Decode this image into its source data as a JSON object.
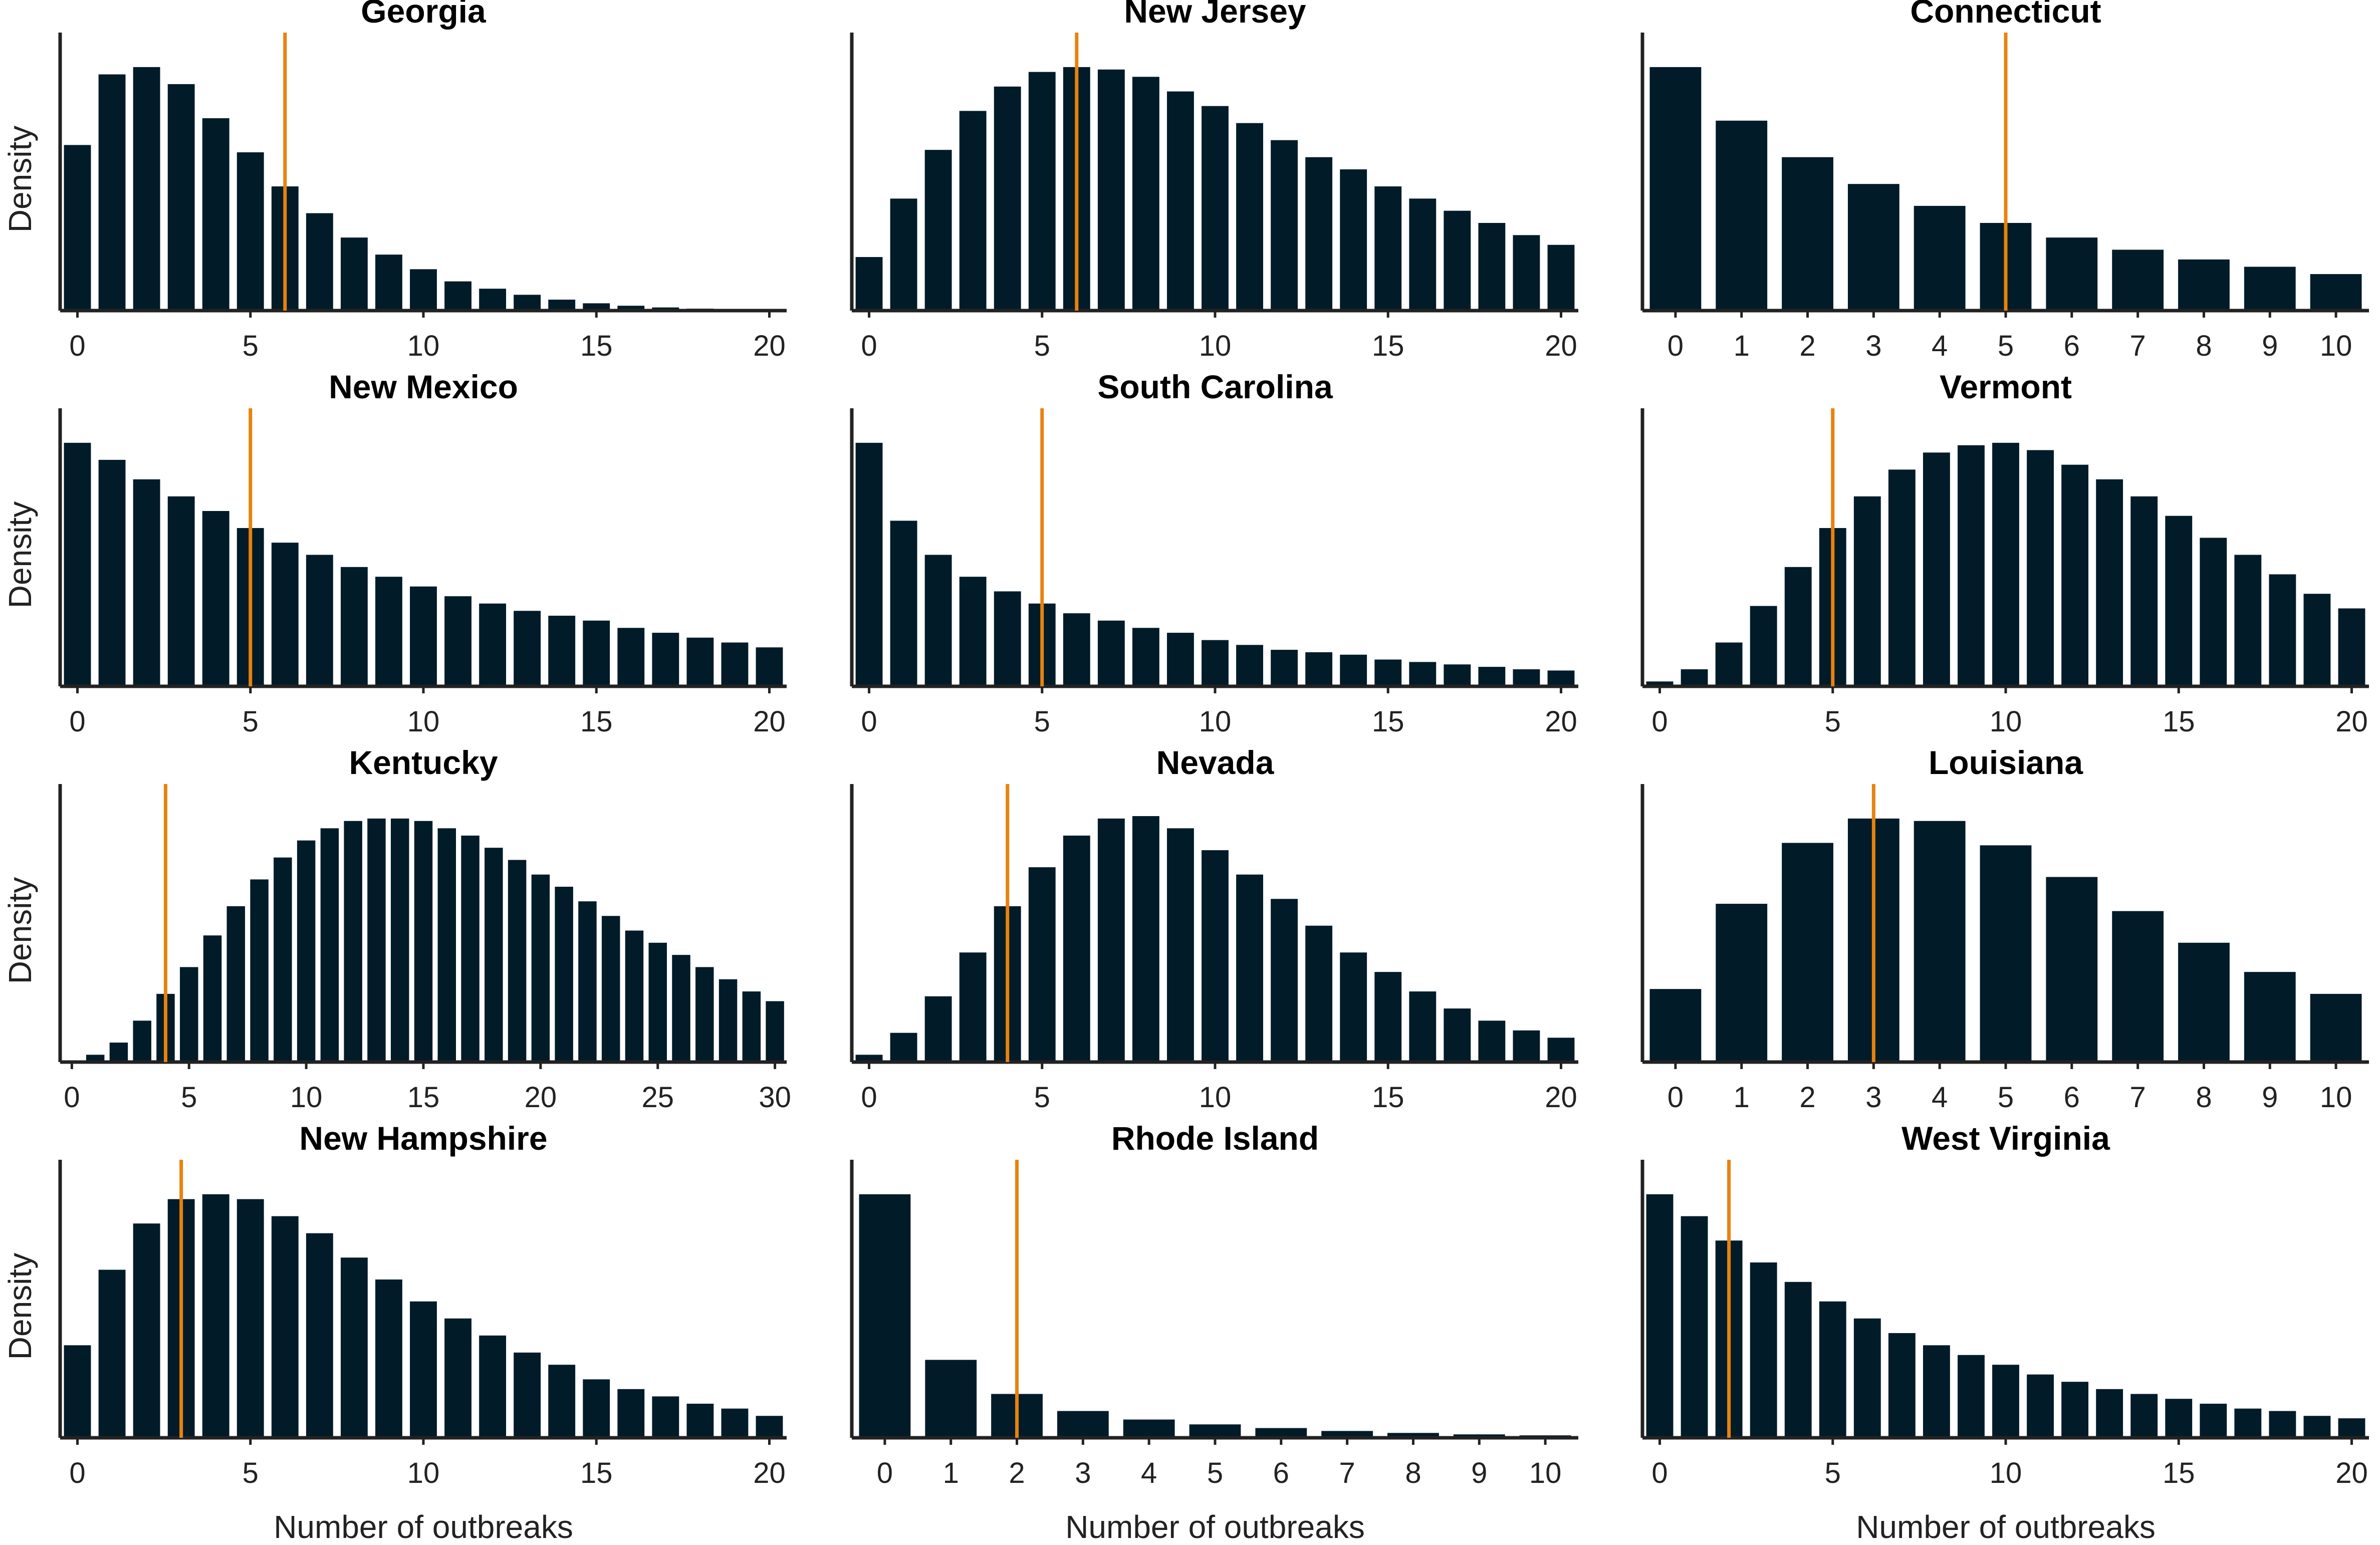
{
  "style": {
    "bar_color": "#021b28",
    "marker_color": "#e8820e",
    "axis_color": "#222222",
    "background": "#ffffff"
  },
  "layout": {
    "rows": 4,
    "cols": 3
  },
  "labels": {
    "ylabel": "Density",
    "xlabel": "Number of outbreaks"
  },
  "chart_data": [
    {
      "type": "bar",
      "title": "Georgia",
      "x": [
        0,
        1,
        2,
        3,
        4,
        5,
        6,
        7,
        8,
        9,
        10,
        11,
        12,
        13,
        14,
        15,
        16,
        17,
        18,
        19,
        20
      ],
      "values": [
        0.68,
        0.97,
        1.0,
        0.93,
        0.79,
        0.65,
        0.51,
        0.4,
        0.3,
        0.23,
        0.17,
        0.12,
        0.09,
        0.065,
        0.045,
        0.03,
        0.02,
        0.013,
        0.008,
        0.005,
        0.003
      ],
      "xticks": [
        0,
        5,
        10,
        15,
        20
      ],
      "xlim": [
        -0.5,
        20.5
      ],
      "ylim": [
        0,
        1.08
      ],
      "marker": 6
    },
    {
      "type": "bar",
      "title": "New Jersey",
      "x": [
        0,
        1,
        2,
        3,
        4,
        5,
        6,
        7,
        8,
        9,
        10,
        11,
        12,
        13,
        14,
        15,
        16,
        17,
        18,
        19,
        20
      ],
      "values": [
        0.22,
        0.46,
        0.66,
        0.82,
        0.92,
        0.98,
        1.0,
        0.99,
        0.96,
        0.9,
        0.84,
        0.77,
        0.7,
        0.63,
        0.58,
        0.51,
        0.46,
        0.41,
        0.36,
        0.31,
        0.27
      ],
      "xticks": [
        0,
        5,
        10,
        15,
        20
      ],
      "xlim": [
        -0.5,
        20.5
      ],
      "ylim": [
        0,
        1.08
      ],
      "marker": 6
    },
    {
      "type": "bar",
      "title": "Connecticut",
      "x": [
        0,
        1,
        2,
        3,
        4,
        5,
        6,
        7,
        8,
        9,
        10
      ],
      "values": [
        1.0,
        0.78,
        0.63,
        0.52,
        0.43,
        0.36,
        0.3,
        0.25,
        0.21,
        0.18,
        0.15
      ],
      "xticks": [
        0,
        1,
        2,
        3,
        4,
        5,
        6,
        7,
        8,
        9,
        10
      ],
      "xlim": [
        -0.5,
        10.5
      ],
      "ylim": [
        0,
        1.08
      ],
      "marker": 5
    },
    {
      "type": "bar",
      "title": "New Mexico",
      "x": [
        0,
        1,
        2,
        3,
        4,
        5,
        6,
        7,
        8,
        9,
        10,
        11,
        12,
        13,
        14,
        15,
        16,
        17,
        18,
        19,
        20
      ],
      "values": [
        1.0,
        0.93,
        0.85,
        0.78,
        0.72,
        0.65,
        0.59,
        0.54,
        0.49,
        0.45,
        0.41,
        0.37,
        0.34,
        0.31,
        0.29,
        0.27,
        0.24,
        0.22,
        0.2,
        0.18,
        0.16
      ],
      "xticks": [
        0,
        5,
        10,
        15,
        20
      ],
      "xlim": [
        -0.5,
        20.5
      ],
      "ylim": [
        0,
        1.08
      ],
      "marker": 5
    },
    {
      "type": "bar",
      "title": "South Carolina",
      "x": [
        0,
        1,
        2,
        3,
        4,
        5,
        6,
        7,
        8,
        9,
        10,
        11,
        12,
        13,
        14,
        15,
        16,
        17,
        18,
        19,
        20
      ],
      "values": [
        1.0,
        0.68,
        0.54,
        0.45,
        0.39,
        0.34,
        0.3,
        0.27,
        0.24,
        0.22,
        0.19,
        0.17,
        0.15,
        0.14,
        0.13,
        0.11,
        0.1,
        0.09,
        0.08,
        0.07,
        0.065
      ],
      "xticks": [
        0,
        5,
        10,
        15,
        20
      ],
      "xlim": [
        -0.5,
        20.5
      ],
      "ylim": [
        0,
        1.08
      ],
      "marker": 5
    },
    {
      "type": "bar",
      "title": "Vermont",
      "x": [
        0,
        1,
        2,
        3,
        4,
        5,
        6,
        7,
        8,
        9,
        10,
        11,
        12,
        13,
        14,
        15,
        16,
        17,
        18,
        19,
        20
      ],
      "values": [
        0.02,
        0.07,
        0.18,
        0.33,
        0.49,
        0.65,
        0.78,
        0.89,
        0.96,
        0.99,
        1.0,
        0.97,
        0.91,
        0.85,
        0.78,
        0.7,
        0.61,
        0.54,
        0.46,
        0.38,
        0.32
      ],
      "xticks": [
        0,
        5,
        10,
        15,
        20
      ],
      "xlim": [
        -0.5,
        20.5
      ],
      "ylim": [
        0,
        1.08
      ],
      "marker": 5
    },
    {
      "type": "bar",
      "title": "Kentucky",
      "x": [
        0,
        1,
        2,
        3,
        4,
        5,
        6,
        7,
        8,
        9,
        10,
        11,
        12,
        13,
        14,
        15,
        16,
        17,
        18,
        19,
        20,
        21,
        22,
        23,
        24,
        25,
        26,
        27,
        28,
        29,
        30
      ],
      "values": [
        0.0,
        0.03,
        0.08,
        0.17,
        0.28,
        0.39,
        0.52,
        0.64,
        0.75,
        0.84,
        0.91,
        0.96,
        0.99,
        1.0,
        1.0,
        0.99,
        0.96,
        0.93,
        0.88,
        0.83,
        0.77,
        0.72,
        0.66,
        0.6,
        0.54,
        0.49,
        0.44,
        0.39,
        0.34,
        0.29,
        0.25
      ],
      "xticks": [
        0,
        5,
        10,
        15,
        20,
        25,
        30
      ],
      "xlim": [
        -0.5,
        30.5
      ],
      "ylim": [
        0,
        1.08
      ],
      "marker": 4
    },
    {
      "type": "bar",
      "title": "Nevada",
      "x": [
        0,
        1,
        2,
        3,
        4,
        5,
        6,
        7,
        8,
        9,
        10,
        11,
        12,
        13,
        14,
        15,
        16,
        17,
        18,
        19,
        20
      ],
      "values": [
        0.03,
        0.12,
        0.27,
        0.45,
        0.64,
        0.8,
        0.93,
        1.0,
        1.01,
        0.96,
        0.87,
        0.77,
        0.67,
        0.56,
        0.45,
        0.37,
        0.29,
        0.22,
        0.17,
        0.13,
        0.1
      ],
      "xticks": [
        0,
        5,
        10,
        15,
        20
      ],
      "xlim": [
        -0.5,
        20.5
      ],
      "ylim": [
        0,
        1.08
      ],
      "marker": 4
    },
    {
      "type": "bar",
      "title": "Louisiana",
      "x": [
        0,
        1,
        2,
        3,
        4,
        5,
        6,
        7,
        8,
        9,
        10
      ],
      "values": [
        0.3,
        0.65,
        0.9,
        1.0,
        0.99,
        0.89,
        0.76,
        0.62,
        0.49,
        0.37,
        0.28
      ],
      "xticks": [
        0,
        1,
        2,
        3,
        4,
        5,
        6,
        7,
        8,
        9,
        10
      ],
      "xlim": [
        -0.5,
        10.5
      ],
      "ylim": [
        0,
        1.08
      ],
      "marker": 3
    },
    {
      "type": "bar",
      "title": "New Hampshire",
      "x": [
        0,
        1,
        2,
        3,
        4,
        5,
        6,
        7,
        8,
        9,
        10,
        11,
        12,
        13,
        14,
        15,
        16,
        17,
        18,
        19,
        20
      ],
      "values": [
        0.38,
        0.69,
        0.88,
        0.98,
        1.0,
        0.98,
        0.91,
        0.84,
        0.74,
        0.65,
        0.56,
        0.49,
        0.42,
        0.35,
        0.3,
        0.24,
        0.2,
        0.17,
        0.14,
        0.12,
        0.09
      ],
      "xticks": [
        0,
        5,
        10,
        15,
        20
      ],
      "xlim": [
        -0.5,
        20.5
      ],
      "ylim": [
        0,
        1.08
      ],
      "marker": 3
    },
    {
      "type": "bar",
      "title": "Rhode Island",
      "x": [
        0,
        1,
        2,
        3,
        4,
        5,
        6,
        7,
        8,
        9,
        10
      ],
      "values": [
        1.0,
        0.32,
        0.18,
        0.11,
        0.075,
        0.055,
        0.04,
        0.028,
        0.02,
        0.014,
        0.01
      ],
      "xticks": [
        0,
        1,
        2,
        3,
        4,
        5,
        6,
        7,
        8,
        9,
        10
      ],
      "xlim": [
        -0.5,
        10.5
      ],
      "ylim": [
        0,
        1.08
      ],
      "marker": 2
    },
    {
      "type": "bar",
      "title": "West Virginia",
      "x": [
        0,
        1,
        2,
        3,
        4,
        5,
        6,
        7,
        8,
        9,
        10,
        11,
        12,
        13,
        14,
        15,
        16,
        17,
        18,
        19,
        20
      ],
      "values": [
        1.0,
        0.91,
        0.81,
        0.72,
        0.64,
        0.56,
        0.49,
        0.43,
        0.38,
        0.34,
        0.3,
        0.26,
        0.23,
        0.2,
        0.18,
        0.16,
        0.14,
        0.12,
        0.11,
        0.09,
        0.08
      ],
      "xticks": [
        0,
        5,
        10,
        15,
        20
      ],
      "xlim": [
        -0.5,
        20.5
      ],
      "ylim": [
        0,
        1.08
      ],
      "marker": 2
    }
  ]
}
